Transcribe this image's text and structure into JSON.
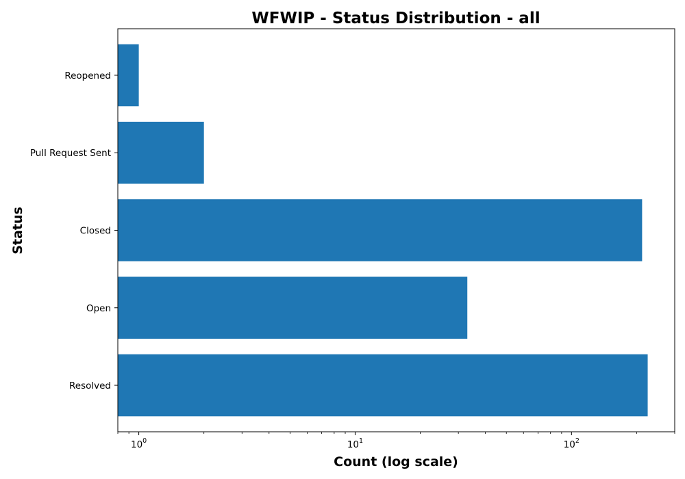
{
  "chart_data": {
    "type": "bar",
    "orientation": "horizontal",
    "title": "WFWIP - Status Distribution - all",
    "xlabel": "Count (log scale)",
    "ylabel": "Status",
    "x_scale": "log",
    "xlim": [
      0.8,
      300
    ],
    "categories": [
      "Resolved",
      "Open",
      "Closed",
      "Pull Request Sent",
      "Reopened"
    ],
    "values": [
      225,
      33,
      212,
      2,
      1
    ],
    "x_ticks": [
      {
        "value": 1,
        "base": "10",
        "exp": "0"
      },
      {
        "value": 10,
        "base": "10",
        "exp": "1"
      },
      {
        "value": 100,
        "base": "10",
        "exp": "2"
      }
    ],
    "grid": false,
    "legend": "none",
    "bar_color": "#1f77b4"
  }
}
